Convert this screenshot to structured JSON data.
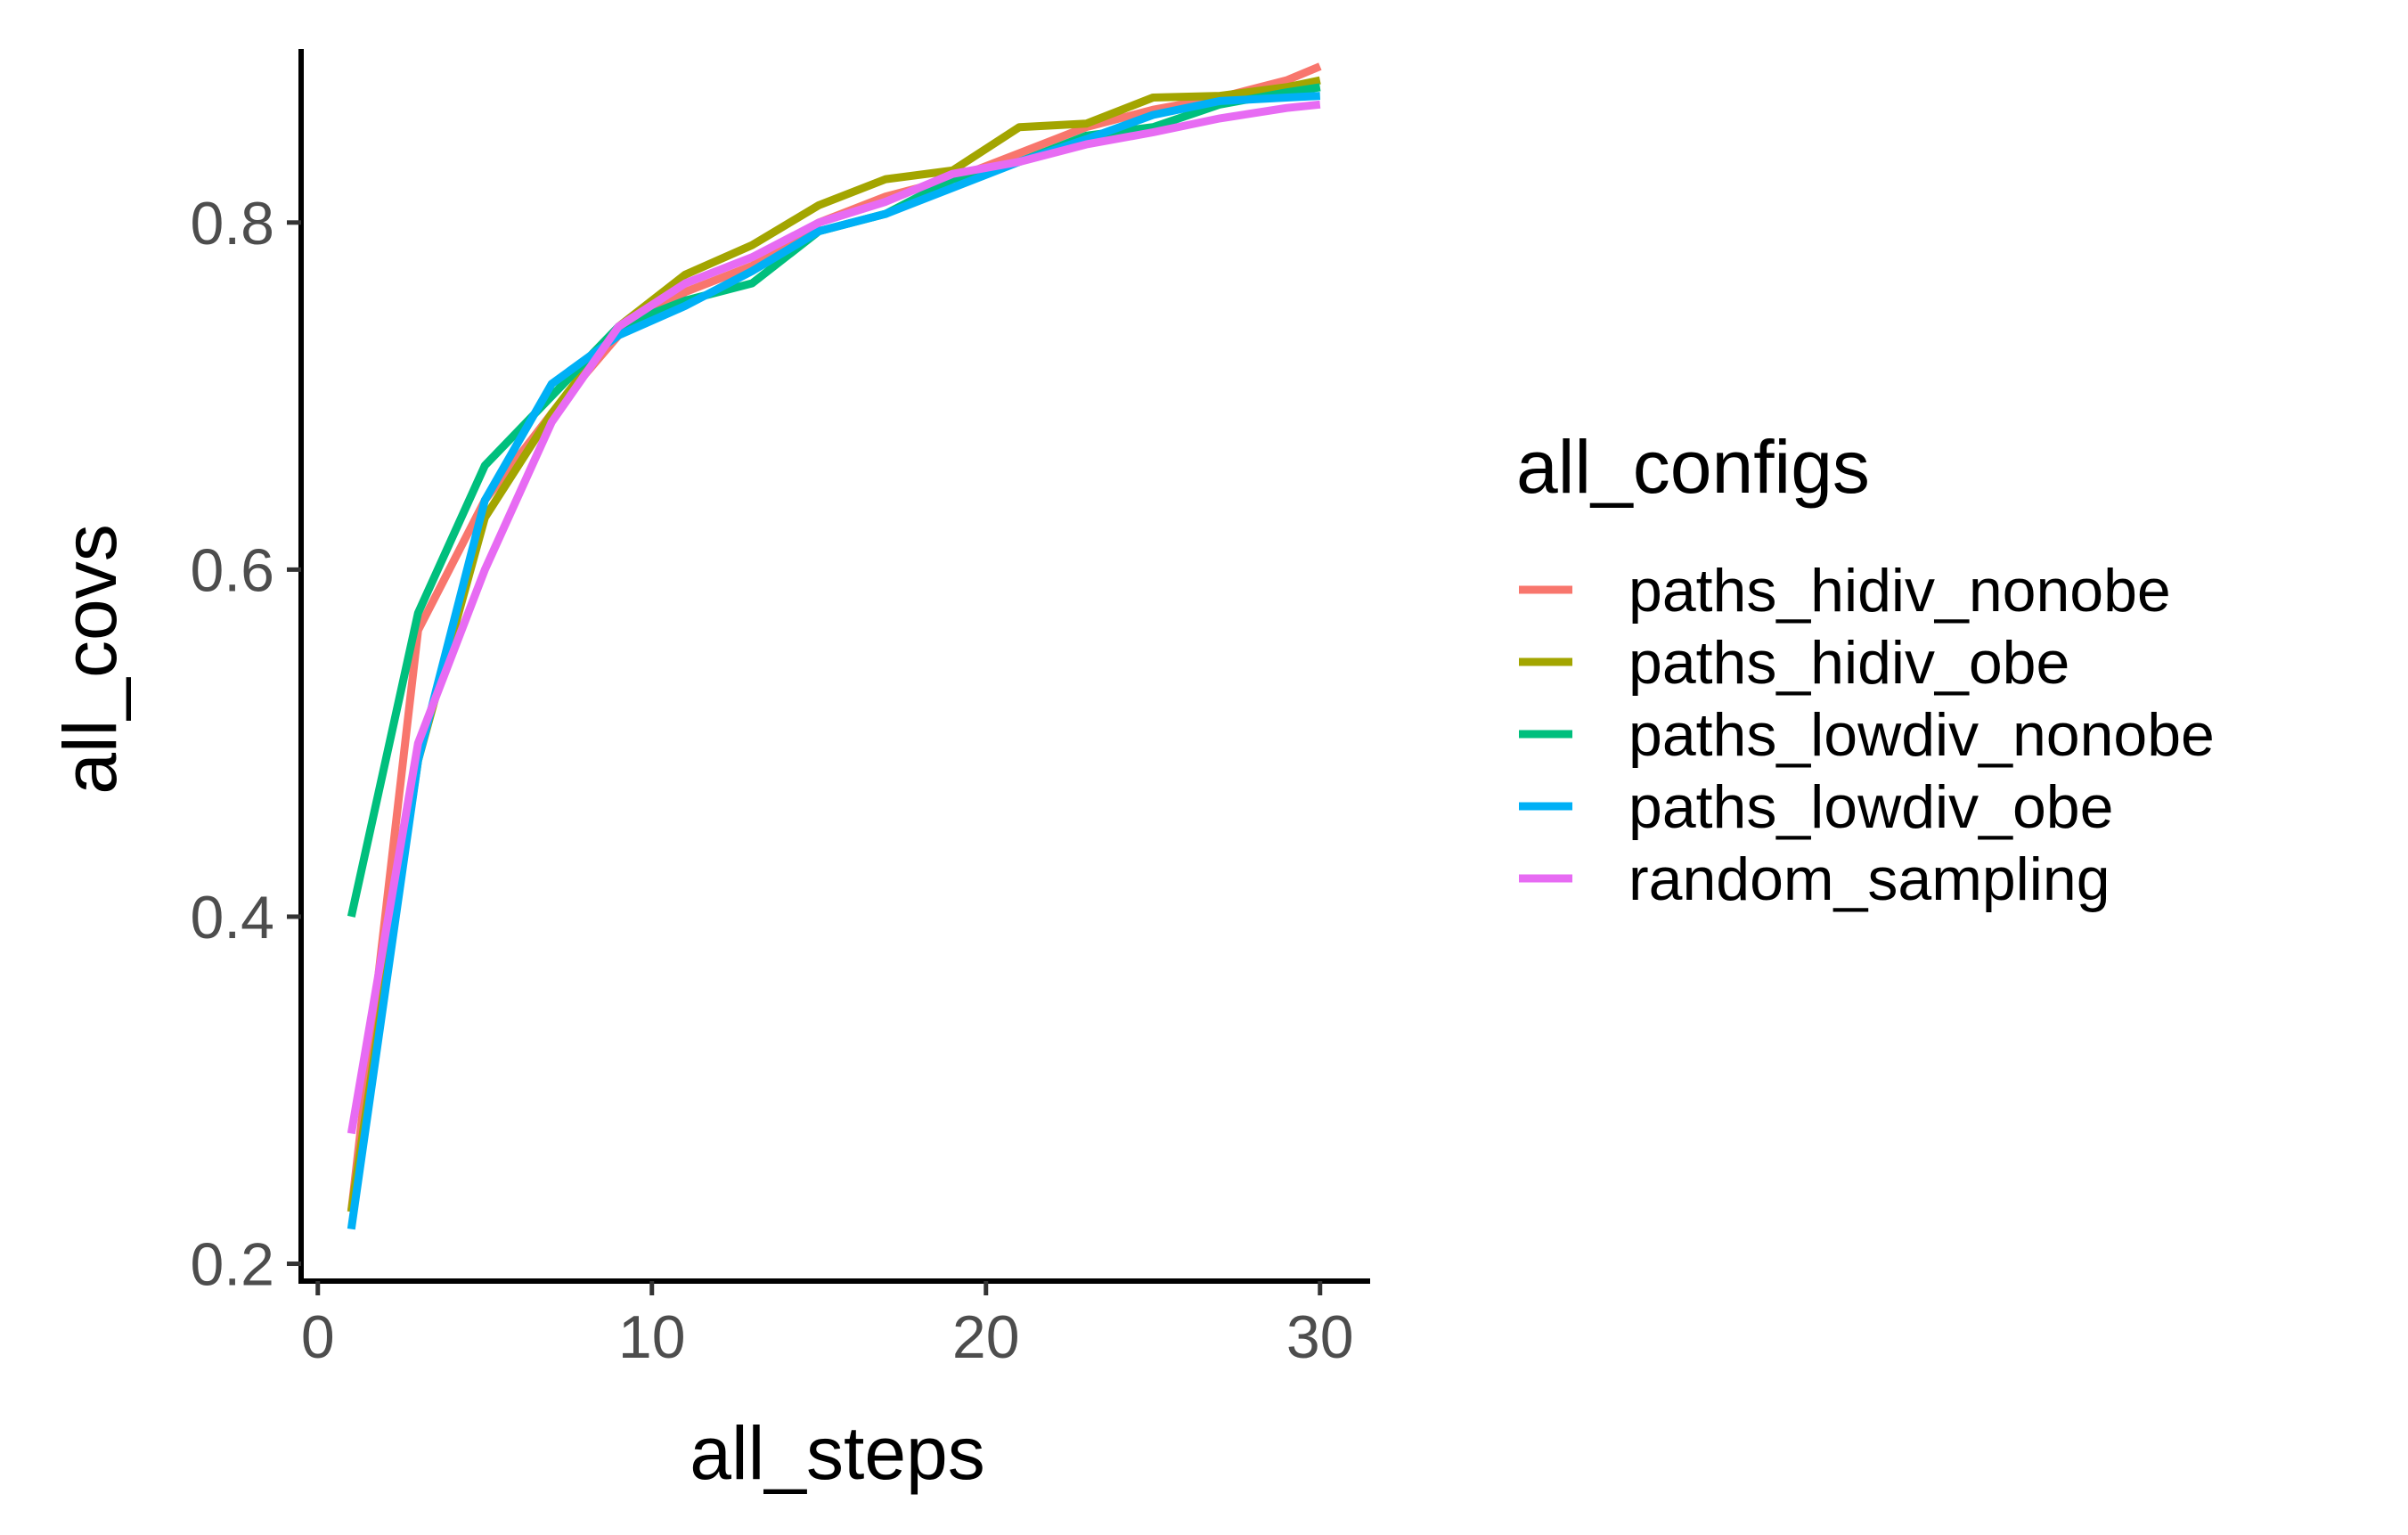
{
  "chart_data": {
    "type": "line",
    "title": "",
    "xlabel": "all_steps",
    "ylabel": "all_covs",
    "xlim": [
      -0.5,
      31.5
    ],
    "ylim": [
      0.19,
      0.9
    ],
    "x_ticks": [
      0,
      10,
      20,
      30
    ],
    "y_ticks": [
      0.2,
      0.4,
      0.6,
      0.8
    ],
    "x_tick_labels": [
      "0",
      "10",
      "20",
      "30"
    ],
    "y_tick_labels": [
      "0.2",
      "0.4",
      "0.6",
      "0.8"
    ],
    "grid": false,
    "legend": {
      "title": "all_configs",
      "placement": "right"
    },
    "x": [
      1,
      3,
      5,
      7,
      9,
      11,
      13,
      15,
      17,
      19,
      21,
      23,
      25,
      27,
      29,
      30
    ],
    "series": [
      {
        "name": "paths_hidiv_nonobe",
        "color": "#F8766D",
        "values": [
          0.23,
          0.565,
          0.64,
          0.69,
          0.735,
          0.76,
          0.775,
          0.8,
          0.815,
          0.825,
          0.84,
          0.855,
          0.865,
          0.872,
          0.882,
          0.89
        ]
      },
      {
        "name": "paths_hidiv_obe",
        "color": "#A3A500",
        "values": [
          0.23,
          0.49,
          0.63,
          0.69,
          0.74,
          0.77,
          0.787,
          0.81,
          0.825,
          0.83,
          0.855,
          0.857,
          0.872,
          0.873,
          0.878,
          0.882
        ]
      },
      {
        "name": "paths_lowdiv_nonobe",
        "color": "#00BF7D",
        "values": [
          0.4,
          0.575,
          0.66,
          0.7,
          0.74,
          0.755,
          0.765,
          0.795,
          0.805,
          0.825,
          0.835,
          0.85,
          0.855,
          0.868,
          0.875,
          0.878
        ]
      },
      {
        "name": "paths_lowdiv_obe",
        "color": "#00B0F6",
        "values": [
          0.22,
          0.49,
          0.64,
          0.707,
          0.735,
          0.752,
          0.772,
          0.795,
          0.805,
          0.82,
          0.835,
          0.848,
          0.862,
          0.87,
          0.872,
          0.873
        ]
      },
      {
        "name": "random_sampling",
        "color": "#E76BF3",
        "values": [
          0.275,
          0.5,
          0.6,
          0.685,
          0.74,
          0.765,
          0.78,
          0.8,
          0.812,
          0.828,
          0.835,
          0.845,
          0.852,
          0.86,
          0.866,
          0.868
        ]
      }
    ]
  }
}
